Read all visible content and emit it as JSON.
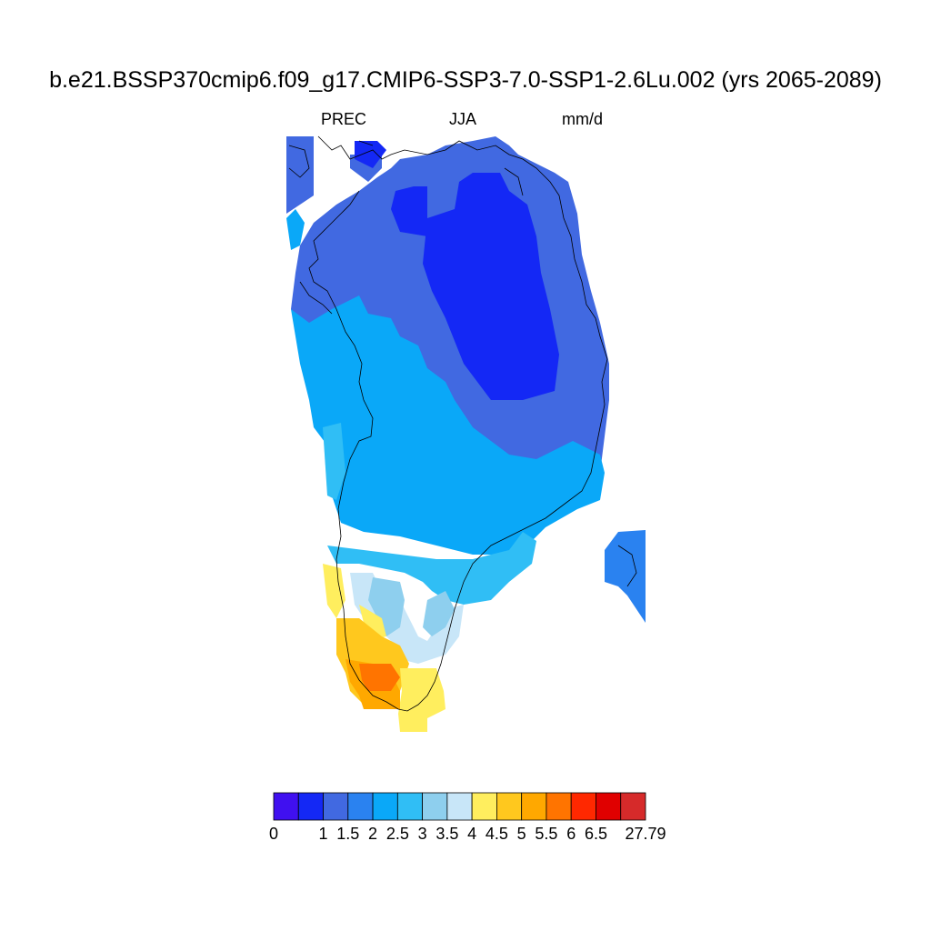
{
  "header": {
    "title": "b.e21.BSSP370cmip6.f09_g17.CMIP6-SSP3-7.0-SSP1-2.6Lu.002 (yrs 2065-2089)",
    "variable": "PREC",
    "season": "JJA",
    "units": "mm/d"
  },
  "colorbar": {
    "colors": [
      "#4010f0",
      "#1428f5",
      "#4169e1",
      "#2a82f0",
      "#0aa8f8",
      "#30bef5",
      "#8ecfee",
      "#c8e6f8",
      "#ffee5e",
      "#ffc81e",
      "#ffa800",
      "#ff7400",
      "#ff2800",
      "#e00000",
      "#d62a2a"
    ],
    "labels": [
      "0",
      "",
      "1",
      "1.5",
      "2",
      "2.5",
      "3",
      "3.5",
      "4",
      "4.5",
      "5",
      "5.5",
      "6",
      "6.5",
      "",
      "27.79"
    ]
  },
  "palette": {
    "dark_blue": "#1428f5",
    "royal_blue": "#4169e1",
    "blue": "#2a82f0",
    "sky": "#0aa8f8",
    "light_sky": "#30bef5",
    "pale_blue": "#8ecfee",
    "very_pale_blue": "#c8e6f8",
    "yellow": "#ffee5e",
    "gold": "#ffc81e",
    "orange": "#ffa800",
    "dark_orange": "#ff7400"
  }
}
